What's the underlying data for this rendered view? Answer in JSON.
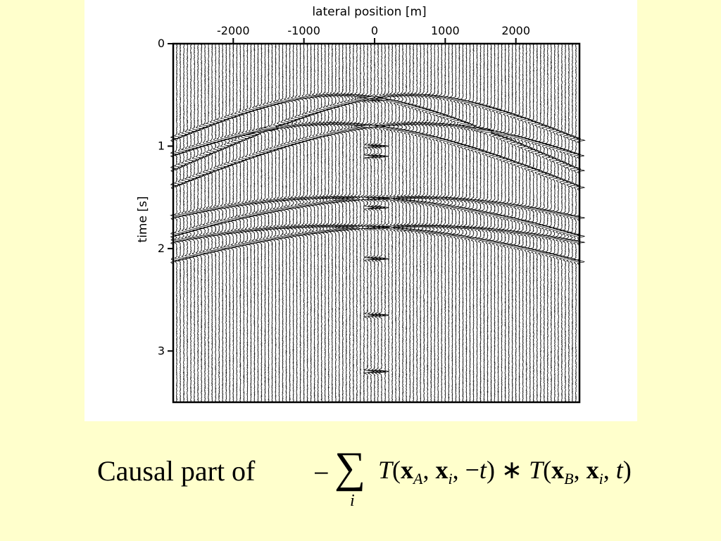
{
  "chart_data": {
    "type": "seismic-wiggle",
    "xlabel": "lateral position [m]",
    "ylabel": "time [s]",
    "x_ticks": [
      "-2000",
      "-1000",
      "0",
      "1000",
      "2000"
    ],
    "x_tick_values": [
      -2000,
      -1000,
      0,
      1000,
      2000
    ],
    "y_ticks": [
      "0",
      "1",
      "2",
      "3"
    ],
    "y_tick_values": [
      0,
      1,
      2,
      3
    ],
    "xlim": [
      -2850,
      2900
    ],
    "ylim": [
      0,
      3.5
    ],
    "trace_spacing_m": 50,
    "events": [
      {
        "x_apex": -500,
        "t0": 0.5
      },
      {
        "x_apex": 500,
        "t0": 0.5
      },
      {
        "x_apex": -600,
        "t0": 0.78
      },
      {
        "x_apex": 600,
        "t0": 0.78
      },
      {
        "x_apex": -500,
        "t0": 1.5
      },
      {
        "x_apex": 500,
        "t0": 1.5
      },
      {
        "x_apex": -600,
        "t0": 1.78
      },
      {
        "x_apex": 600,
        "t0": 1.78
      }
    ],
    "local_events": [
      {
        "x": 0,
        "t": 0.55
      },
      {
        "x": 0,
        "t": 1.0
      },
      {
        "x": 0,
        "t": 1.1
      },
      {
        "x": 0,
        "t": 1.6
      },
      {
        "x": 0,
        "t": 2.1
      },
      {
        "x": 0,
        "t": 2.65
      },
      {
        "x": 0,
        "t": 3.2
      }
    ]
  },
  "caption": {
    "text": "Causal part of"
  },
  "formula": {
    "minus": "−",
    "sum": "∑",
    "sum_index": "i",
    "expression": "T(x_A, x_i, −t) ∗ T(x_B, x_i, t)"
  }
}
